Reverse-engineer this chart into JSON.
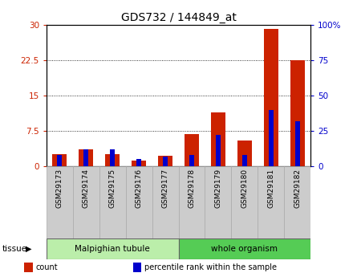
{
  "title": "GDS732 / 144849_at",
  "samples": [
    "GSM29173",
    "GSM29174",
    "GSM29175",
    "GSM29176",
    "GSM29177",
    "GSM29178",
    "GSM29179",
    "GSM29180",
    "GSM29181",
    "GSM29182"
  ],
  "count_values": [
    2.5,
    3.5,
    2.5,
    1.2,
    2.3,
    6.8,
    11.5,
    5.5,
    29.2,
    22.5
  ],
  "percentile_values": [
    8,
    12,
    12,
    5,
    7,
    8,
    22,
    8,
    40,
    32
  ],
  "left_ylim": [
    0,
    30
  ],
  "right_ylim": [
    0,
    100
  ],
  "left_yticks": [
    0,
    7.5,
    15,
    22.5,
    30
  ],
  "right_yticks": [
    0,
    25,
    50,
    75,
    100
  ],
  "left_yticklabels": [
    "0",
    "7.5",
    "15",
    "22.5",
    "30"
  ],
  "right_yticklabels": [
    "0",
    "25",
    "50",
    "75",
    "100%"
  ],
  "bar_color_red": "#cc2200",
  "bar_color_blue": "#0000cc",
  "tissue_groups": [
    {
      "label": "Malpighian tubule",
      "start": 0,
      "end": 5,
      "color": "#bbeeaa"
    },
    {
      "label": "whole organism",
      "start": 5,
      "end": 10,
      "color": "#55cc55"
    }
  ],
  "tissue_label": "tissue",
  "legend_items": [
    {
      "color": "#cc2200",
      "label": "count"
    },
    {
      "color": "#0000cc",
      "label": "percentile rank within the sample"
    }
  ],
  "tick_bg_color": "#cccccc",
  "plot_bg_color": "#ffffff",
  "outer_bg_color": "#ffffff",
  "red_bar_width": 0.55,
  "blue_bar_width": 0.18
}
